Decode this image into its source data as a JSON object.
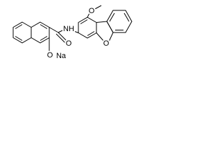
{
  "atoms": {
    "methoxy_o": "O",
    "amide_nh": "NH",
    "carbonyl_o": "O",
    "furan_o": "O",
    "hydroxy_o": "O",
    "sodium": "Na"
  }
}
